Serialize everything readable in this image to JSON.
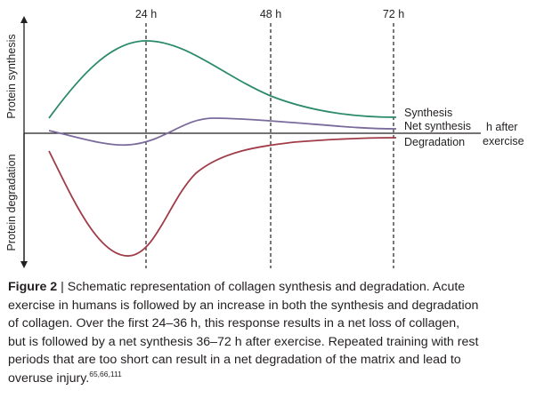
{
  "figure": {
    "y_axis_top": "Protein synthesis",
    "y_axis_bottom": "Protein degradation",
    "ticks": [
      "24 h",
      "48 h",
      "72 h"
    ],
    "curves": [
      "Synthesis",
      "Net synthesis",
      "Degradation"
    ],
    "x_axis_label": [
      "h after",
      "exercise"
    ]
  },
  "caption": {
    "label": "Figure 2",
    "lines": [
      "| Schematic representation of collagen synthesis and degradation. Acute",
      "exercise in humans is followed by an increase in both the synthesis and degradation",
      "of collagen. Over the first 24–36 h, this response results in a net loss of collagen,",
      "but is followed by a net synthesis 36–72 h after exercise. Repeated training with rest",
      "periods that are too short can result in a net degradation of the matrix and lead to",
      "overuse injury."
    ],
    "refs": "65,66,111"
  }
}
